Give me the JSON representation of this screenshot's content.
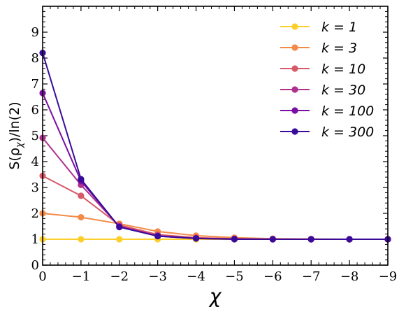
{
  "chart_data": {
    "type": "line",
    "xlabel": "χ",
    "ylabel": "S(ρ_χ)/ln(2)",
    "xlim": [
      0,
      -9
    ],
    "ylim": [
      0,
      10
    ],
    "xticks": [
      "0",
      "−1",
      "−2",
      "−3",
      "−4",
      "−5",
      "−6",
      "−7",
      "−8",
      "−9"
    ],
    "yticks": [
      "0",
      "1",
      "2",
      "3",
      "4",
      "5",
      "6",
      "7",
      "8",
      "9"
    ],
    "legend_position": "top-right",
    "grid": false,
    "x": [
      0,
      -1,
      -2,
      -3,
      -4,
      -5,
      -6,
      -7,
      -8,
      -9
    ],
    "series": [
      {
        "name": "k = 1",
        "color": "#fccf2a",
        "values": [
          1.0,
          1.0,
          1.0,
          1.0,
          1.0,
          1.0,
          1.0,
          1.0,
          1.0,
          1.0
        ]
      },
      {
        "name": "k = 3",
        "color": "#f48a47",
        "values": [
          2.0,
          1.85,
          1.6,
          1.3,
          1.14,
          1.06,
          1.02,
          1.01,
          1.0,
          1.0
        ]
      },
      {
        "name": "k = 10",
        "color": "#d65a67",
        "values": [
          3.45,
          2.68,
          1.55,
          1.18,
          1.06,
          1.02,
          1.01,
          1.0,
          1.0,
          1.0
        ]
      },
      {
        "name": "k = 30",
        "color": "#b0308f",
        "values": [
          4.92,
          3.1,
          1.5,
          1.14,
          1.04,
          1.01,
          1.0,
          1.0,
          1.0,
          1.0
        ]
      },
      {
        "name": "k = 100",
        "color": "#7a0fa5",
        "values": [
          6.65,
          3.25,
          1.48,
          1.12,
          1.03,
          1.01,
          1.0,
          1.0,
          1.0,
          1.0
        ]
      },
      {
        "name": "k = 300",
        "color": "#3a0b9a",
        "values": [
          8.2,
          3.32,
          1.47,
          1.12,
          1.03,
          1.0,
          1.0,
          1.0,
          1.0,
          1.0
        ]
      }
    ]
  }
}
